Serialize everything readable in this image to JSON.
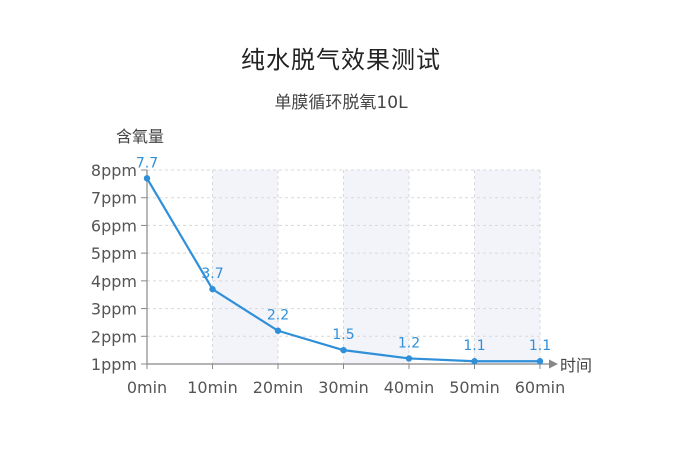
{
  "chart_data": {
    "type": "line",
    "title": "纯水脱气效果测试",
    "subtitle": "单膜循环脱氧10L",
    "ylabel": "含氧量",
    "xlabel": "时间",
    "categories": [
      "0min",
      "10min",
      "20min",
      "30min",
      "40min",
      "50min",
      "60min"
    ],
    "yticks": [
      "1ppm",
      "2ppm",
      "3ppm",
      "4ppm",
      "5ppm",
      "6ppm",
      "7ppm",
      "8ppm"
    ],
    "ylim": [
      1,
      8
    ],
    "series": [
      {
        "values": [
          7.7,
          3.7,
          2.2,
          1.5,
          1.2,
          1.1,
          1.1
        ],
        "labels": [
          "7.7",
          "3.7",
          "2.2",
          "1.5",
          "1.2",
          "1.1",
          "1.1"
        ]
      }
    ],
    "grid": true,
    "colors": {
      "line": "#2f8fd8",
      "band": "#f3f4fa",
      "grid": "#d9d9d9",
      "axis": "#888888"
    }
  }
}
